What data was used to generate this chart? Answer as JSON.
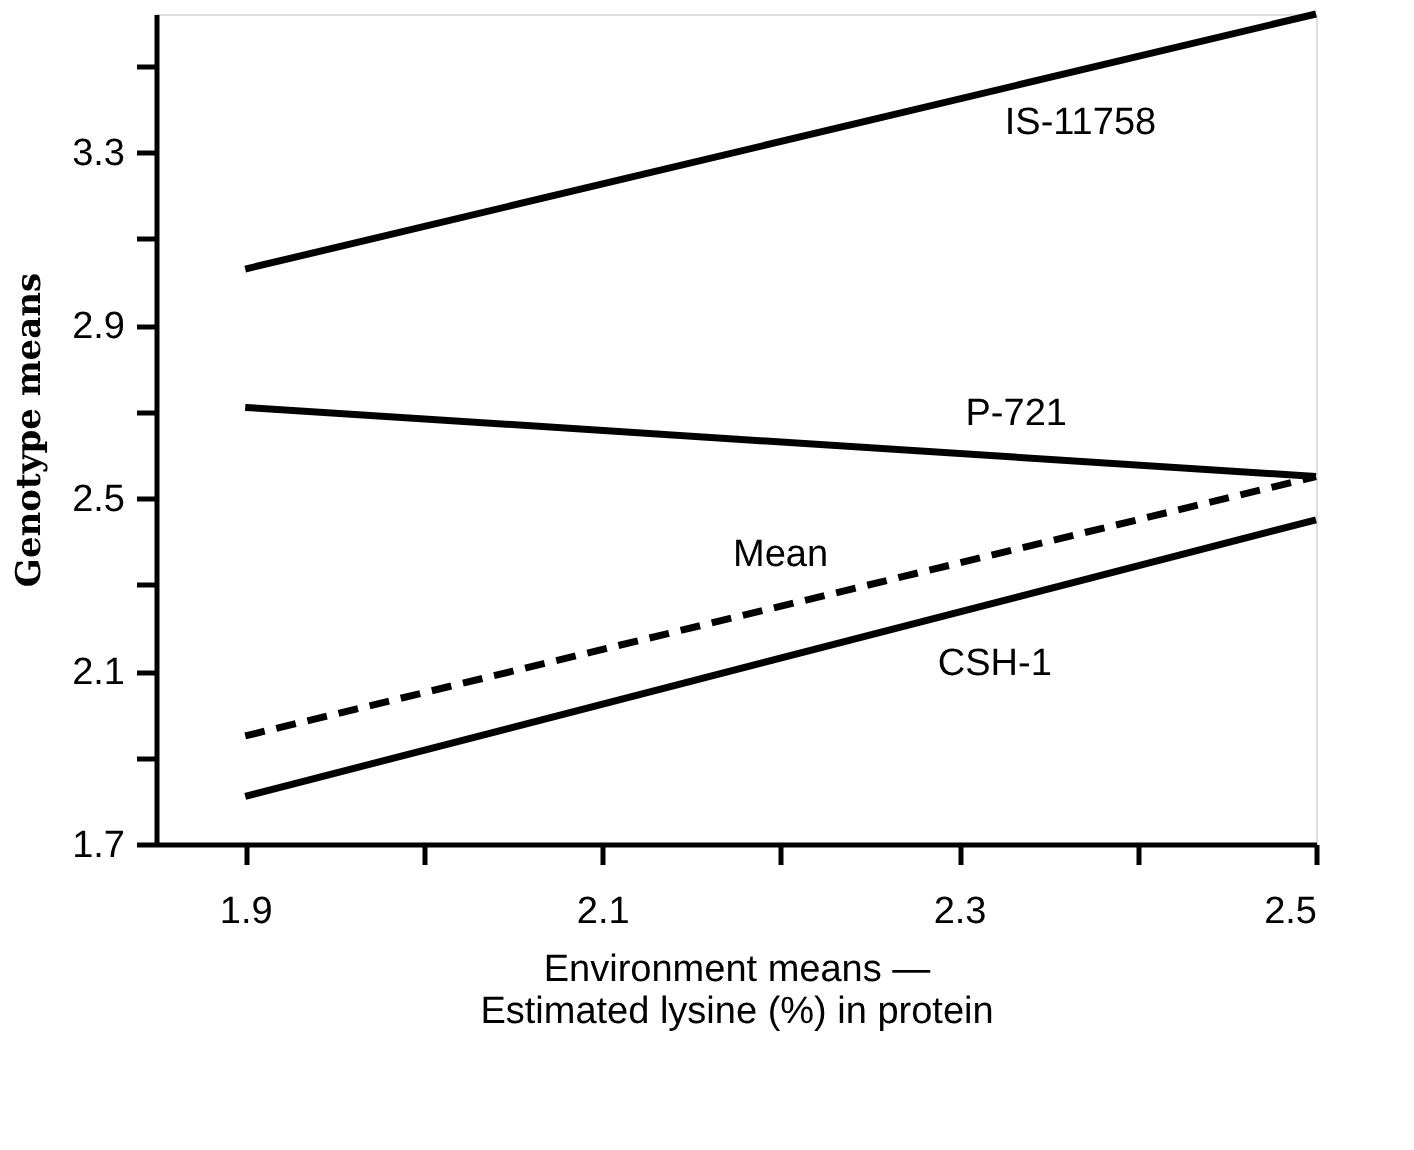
{
  "chart_data": {
    "type": "line",
    "xlabel": "Environment means —\nEstimated lysine (%) in protein",
    "ylabel": "Genotype means",
    "x": [
      1.9,
      2.5
    ],
    "series": [
      {
        "name": "IS-11758",
        "color": "#000000",
        "values": [
          3.03,
          3.62
        ],
        "line_style": "solid"
      },
      {
        "name": "P-721",
        "color": "#000000",
        "values": [
          2.71,
          2.55
        ],
        "line_style": "solid"
      },
      {
        "name": "Mean",
        "color": "#000000",
        "values": [
          1.95,
          2.55
        ],
        "line_style": "dashed"
      },
      {
        "name": "CSH-1",
        "color": "#000000",
        "values": [
          1.81,
          2.45
        ],
        "line_style": "solid"
      }
    ],
    "xlim": [
      1.85,
      2.5
    ],
    "ylim": [
      1.7,
      3.62
    ],
    "xticks": [
      1.9,
      {
        "value": 2.0,
        "label": null
      },
      2.1,
      {
        "value": 2.2,
        "label": null
      },
      2.3,
      {
        "value": 2.4,
        "label": null
      },
      2.5
    ],
    "yticks": [
      1.7,
      {
        "value": 1.9,
        "label": null
      },
      2.1,
      {
        "value": 2.3,
        "label": null
      },
      2.5,
      {
        "value": 2.7,
        "label": null
      },
      2.9,
      {
        "value": 3.1,
        "label": null
      },
      3.3,
      {
        "value": 3.5,
        "label": null
      }
    ],
    "grid": false,
    "marker": "none"
  }
}
